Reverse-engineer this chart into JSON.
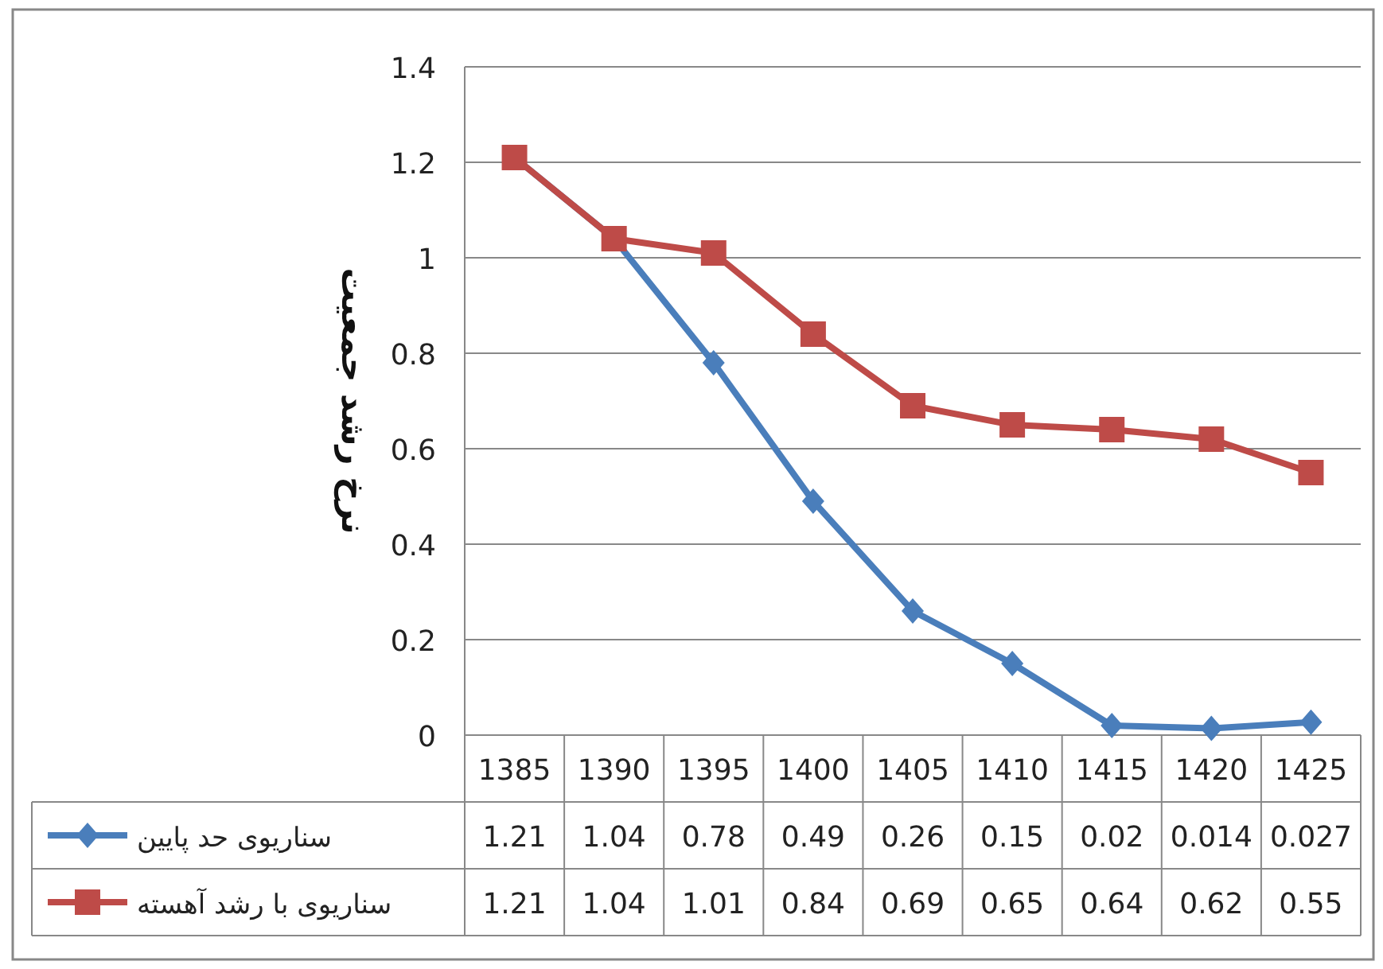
{
  "chart_data": {
    "type": "line",
    "ylabel": "نرخ رشد جمعیت",
    "categories": [
      "1385",
      "1390",
      "1395",
      "1400",
      "1405",
      "1410",
      "1415",
      "1420",
      "1425"
    ],
    "series": [
      {
        "name": "سناریوی حد پایین",
        "color": "#4a7ebb",
        "marker": "diamond",
        "values": [
          1.21,
          1.04,
          0.78,
          0.49,
          0.26,
          0.15,
          0.02,
          0.014,
          0.027
        ]
      },
      {
        "name": "سناریوی با رشد آهسته",
        "color": "#be4b48",
        "marker": "square",
        "values": [
          1.21,
          1.04,
          1.01,
          0.84,
          0.69,
          0.65,
          0.64,
          0.62,
          0.55
        ]
      }
    ],
    "ylim": [
      0,
      1.4
    ],
    "yticks": [
      0,
      0.2,
      0.4,
      0.6,
      0.8,
      1,
      1.2,
      1.4
    ],
    "grid": "y",
    "legend": "bottom",
    "data_labels": true
  }
}
